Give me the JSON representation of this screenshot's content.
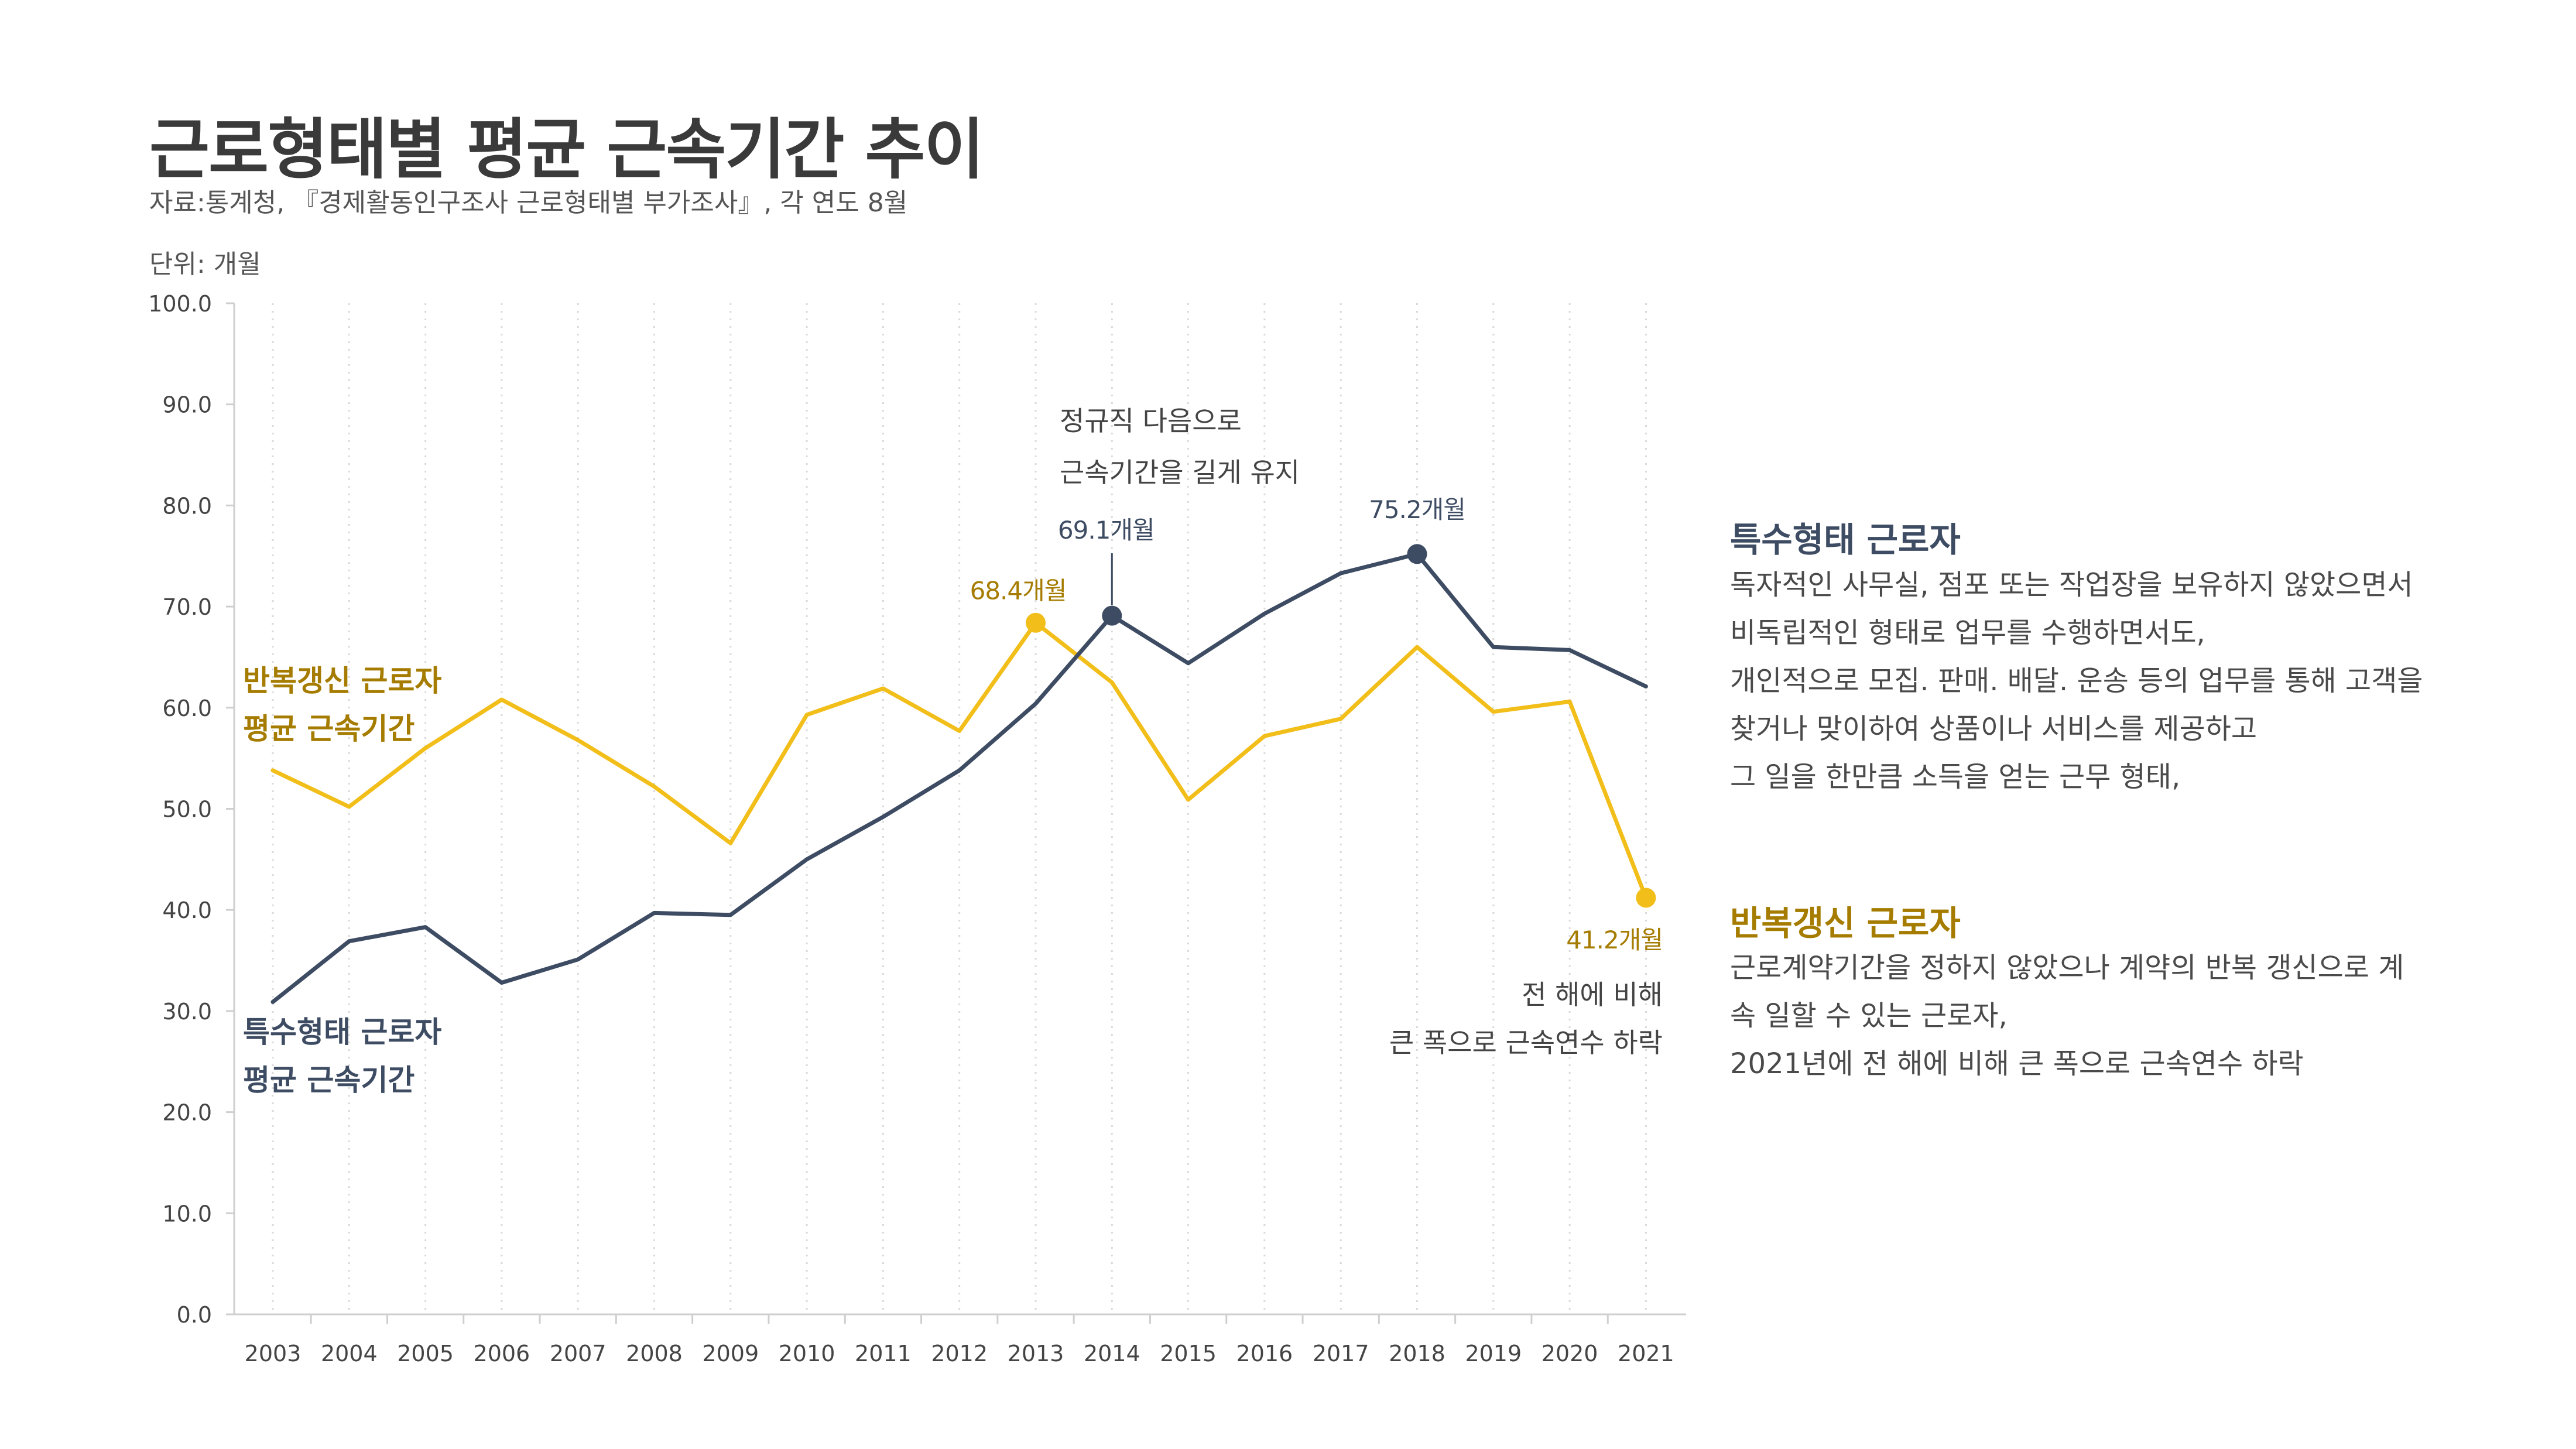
{
  "header": {
    "title": "근로형태별 평균 근속기간 추이",
    "source": "자료:통계청, 『경제활동인구조사 근로형태별 부가조사』, 각 연도 8월",
    "unit": "단위: 개월"
  },
  "colors": {
    "yellow": "#F2BE1A",
    "navy": "#3E4C63",
    "yellow_text": "#A57C00",
    "navy_text": "#3E4C63"
  },
  "chart_data": {
    "type": "line",
    "categories": [
      "2003",
      "2004",
      "2005",
      "2006",
      "2007",
      "2008",
      "2009",
      "2010",
      "2011",
      "2012",
      "2013",
      "2014",
      "2015",
      "2016",
      "2017",
      "2018",
      "2019",
      "2020",
      "2021"
    ],
    "ylim": [
      0,
      100
    ],
    "yticks": [
      "0.0",
      "10.0",
      "20.0",
      "30.0",
      "40.0",
      "50.0",
      "60.0",
      "70.0",
      "80.0",
      "90.0",
      "100.0"
    ],
    "series": [
      {
        "name": "반복갱신 근로자 평균 근속기간",
        "label_lines": [
          "반복갱신 근로자",
          "평균 근속기간"
        ],
        "color": "#F2BE1A",
        "values": [
          53.8,
          50.2,
          56.0,
          60.8,
          56.8,
          52.2,
          46.6,
          59.3,
          61.9,
          57.7,
          68.4,
          62.5,
          50.9,
          57.2,
          58.9,
          66.0,
          59.6,
          60.6,
          41.2
        ]
      },
      {
        "name": "특수형태 근로자 평균 근속기간",
        "label_lines": [
          "특수형태 근로자",
          "평균 근속기간"
        ],
        "color": "#3E4C63",
        "values": [
          30.9,
          36.9,
          38.3,
          32.8,
          35.1,
          39.7,
          39.5,
          45.0,
          49.2,
          53.8,
          60.4,
          69.1,
          64.4,
          69.3,
          73.3,
          75.2,
          66.0,
          65.7,
          62.1
        ]
      }
    ],
    "annotations": {
      "peak_2013_yellow": "68.4개월",
      "peak_2014_navy": "69.1개월",
      "peak_2018_navy": "75.2개월",
      "end_2021_yellow": "41.2개월",
      "callout_2014": [
        "정규직 다음으로",
        "근속기간을 길게 유지"
      ],
      "callout_2021": [
        "전 해에 비해",
        "큰 폭으로 근속연수 하락"
      ]
    }
  },
  "definitions": {
    "special": {
      "title": "특수형태 근로자",
      "lines": [
        "독자적인 사무실, 점포 또는 작업장을 보유하지 않았으면서",
        "비독립적인 형태로 업무를 수행하면서도,",
        "개인적으로 모집. 판매. 배달. 운송 등의 업무를 통해 고객을",
        "찾거나 맞이하여 상품이나 서비스를 제공하고",
        "그 일을 한만큼 소득을 얻는 근무 형태,"
      ]
    },
    "renewal": {
      "title": "반복갱신 근로자",
      "lines": [
        "근로계약기간을 정하지 않았으나 계약의 반복 갱신으로 계",
        "속 일할 수 있는 근로자,",
        "2021년에 전 해에 비해 큰 폭으로 근속연수 하락"
      ]
    }
  }
}
